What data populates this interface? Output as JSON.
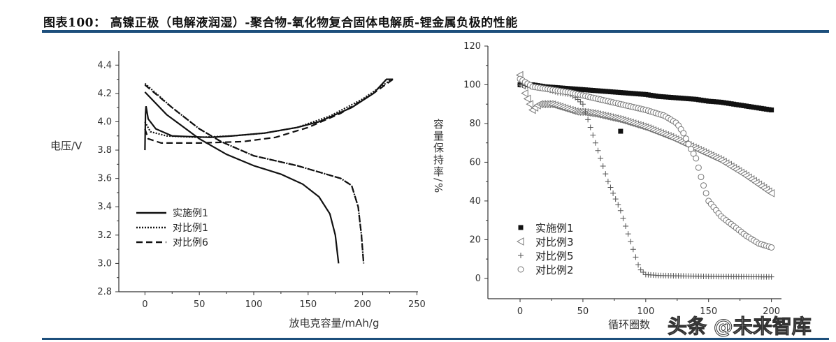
{
  "header": {
    "title": "图表100：  高镍正极（电解液润湿）-聚合物-氧化物复合固体电解质-锂金属负极的性能"
  },
  "watermark": "头条 @未来智库",
  "chart_data": [
    {
      "type": "line",
      "title": "",
      "xlabel": "放电克容量/mAh/g",
      "ylabel": "电压/V",
      "xlim": [
        -24,
        251
      ],
      "ylim": [
        2.8,
        4.5
      ],
      "xticks": [
        "0",
        "50",
        "100",
        "150",
        "200",
        "250"
      ],
      "xtick_values": [
        0,
        50,
        100,
        150,
        200,
        250
      ],
      "yticks": [
        "2.8",
        "3.0",
        "3.2",
        "3.4",
        "3.6",
        "3.8",
        "4.0",
        "4.2",
        "4.4"
      ],
      "ytick_values": [
        2.8,
        3.0,
        3.2,
        3.4,
        3.6,
        3.8,
        4.0,
        4.2,
        4.4
      ],
      "legend_position": "bottom-left",
      "series": [
        {
          "name": "实施例1",
          "style": "solid",
          "charge": [
            [
              0,
              3.8
            ],
            [
              0.5,
              4.05
            ],
            [
              1,
              4.11
            ],
            [
              3,
              4.02
            ],
            [
              10,
              3.95
            ],
            [
              25,
              3.9
            ],
            [
              60,
              3.89
            ],
            [
              80,
              3.9
            ],
            [
              110,
              3.92
            ],
            [
              140,
              3.96
            ],
            [
              160,
              4.0
            ],
            [
              190,
              4.1
            ],
            [
              210,
              4.2
            ],
            [
              222,
              4.3
            ],
            [
              228,
              4.3
            ]
          ],
          "discharge": [
            [
              0,
              4.21
            ],
            [
              20,
              4.05
            ],
            [
              50,
              3.88
            ],
            [
              75,
              3.77
            ],
            [
              100,
              3.69
            ],
            [
              125,
              3.63
            ],
            [
              145,
              3.56
            ],
            [
              160,
              3.47
            ],
            [
              170,
              3.35
            ],
            [
              175,
              3.2
            ],
            [
              178,
              3.0
            ]
          ]
        },
        {
          "name": "对比例1",
          "style": "dotted",
          "charge": [
            [
              0,
              4.0
            ],
            [
              5,
              3.93
            ],
            [
              20,
              3.9
            ],
            [
              50,
              3.89
            ],
            [
              80,
              3.9
            ],
            [
              110,
              3.92
            ],
            [
              140,
              3.96
            ],
            [
              170,
              4.04
            ],
            [
              200,
              4.16
            ],
            [
              225,
              4.29
            ],
            [
              228,
              4.3
            ]
          ],
          "discharge": [
            [
              0,
              4.27
            ],
            [
              25,
              4.1
            ],
            [
              50,
              3.95
            ],
            [
              70,
              3.86
            ],
            [
              100,
              3.76
            ],
            [
              140,
              3.69
            ],
            [
              180,
              3.6
            ],
            [
              190,
              3.55
            ],
            [
              196,
              3.4
            ],
            [
              199,
              3.2
            ],
            [
              201,
              3.0
            ]
          ]
        },
        {
          "name": "对比例6",
          "style": "dashed",
          "charge": [
            [
              0,
              3.95
            ],
            [
              3,
              3.88
            ],
            [
              15,
              3.85
            ],
            [
              50,
              3.85
            ],
            [
              90,
              3.86
            ],
            [
              120,
              3.89
            ],
            [
              150,
              3.96
            ],
            [
              180,
              4.06
            ],
            [
              210,
              4.2
            ],
            [
              228,
              4.3
            ]
          ],
          "discharge": [
            [
              0,
              4.26
            ],
            [
              25,
              4.1
            ],
            [
              50,
              3.95
            ],
            [
              70,
              3.86
            ],
            [
              100,
              3.76
            ],
            [
              140,
              3.69
            ],
            [
              180,
              3.6
            ],
            [
              190,
              3.55
            ],
            [
              196,
              3.4
            ],
            [
              199,
              3.2
            ],
            [
              201,
              3.0
            ]
          ]
        }
      ]
    },
    {
      "type": "scatter",
      "title": "",
      "xlabel": "循环圈数",
      "ylabel": "容量保持率/%",
      "xlim": [
        -25.6,
        208
      ],
      "ylim": [
        -10.5,
        120
      ],
      "xticks": [
        "0",
        "50",
        "100",
        "150",
        "200"
      ],
      "xtick_values": [
        0,
        50,
        100,
        150,
        200
      ],
      "yticks": [
        "0",
        "20",
        "40",
        "60",
        "80",
        "100",
        "120"
      ],
      "ytick_values": [
        0,
        20,
        40,
        60,
        80,
        100,
        120
      ],
      "legend_position": "bottom-left",
      "series": [
        {
          "name": "实施例1",
          "marker": "square",
          "points": [
            [
              0,
              100
            ],
            [
              10,
              100
            ],
            [
              20,
              99
            ],
            [
              30,
              98.5
            ],
            [
              40,
              98
            ],
            [
              50,
              97.5
            ],
            [
              60,
              97
            ],
            [
              70,
              96.5
            ],
            [
              80,
              96
            ],
            [
              90,
              95.5
            ],
            [
              100,
              95
            ],
            [
              110,
              94
            ],
            [
              120,
              93.5
            ],
            [
              130,
              93
            ],
            [
              140,
              92.5
            ],
            [
              150,
              91.5
            ],
            [
              160,
              91
            ],
            [
              170,
              90
            ],
            [
              180,
              89
            ],
            [
              190,
              88
            ],
            [
              200,
              87
            ]
          ],
          "outliers": [
            [
              80,
              76
            ]
          ]
        },
        {
          "name": "对比例3",
          "marker": "triangle-left",
          "points": [
            [
              0,
              105
            ],
            [
              3,
              97
            ],
            [
              8,
              90
            ],
            [
              10,
              87
            ],
            [
              15,
              90
            ],
            [
              25,
              90
            ],
            [
              35,
              88
            ],
            [
              45,
              86
            ],
            [
              50,
              86
            ],
            [
              60,
              85
            ],
            [
              80,
              82
            ],
            [
              100,
              78
            ],
            [
              120,
              73
            ],
            [
              140,
              67
            ],
            [
              160,
              61
            ],
            [
              180,
              53
            ],
            [
              200,
              44
            ]
          ]
        },
        {
          "name": "对比例5",
          "marker": "plus",
          "points": [
            [
              0,
              100
            ],
            [
              10,
              99
            ],
            [
              20,
              98
            ],
            [
              30,
              96
            ],
            [
              40,
              95
            ],
            [
              45,
              93
            ],
            [
              50,
              90
            ],
            [
              55,
              80
            ],
            [
              60,
              70
            ],
            [
              70,
              50
            ],
            [
              80,
              35
            ],
            [
              90,
              15
            ],
            [
              95,
              5
            ],
            [
              100,
              2
            ],
            [
              110,
              1.5
            ],
            [
              150,
              1
            ],
            [
              200,
              0.8
            ]
          ]
        },
        {
          "name": "对比例2",
          "marker": "circle",
          "points": [
            [
              0,
              103
            ],
            [
              10,
              99
            ],
            [
              20,
              98
            ],
            [
              40,
              96
            ],
            [
              60,
              93
            ],
            [
              80,
              90
            ],
            [
              100,
              87
            ],
            [
              115,
              84
            ],
            [
              125,
              80
            ],
            [
              130,
              75
            ],
            [
              135,
              68
            ],
            [
              140,
              62
            ],
            [
              145,
              50
            ],
            [
              150,
              40
            ],
            [
              160,
              32
            ],
            [
              170,
              27
            ],
            [
              180,
              22
            ],
            [
              190,
              18
            ],
            [
              200,
              16
            ]
          ]
        }
      ]
    }
  ]
}
